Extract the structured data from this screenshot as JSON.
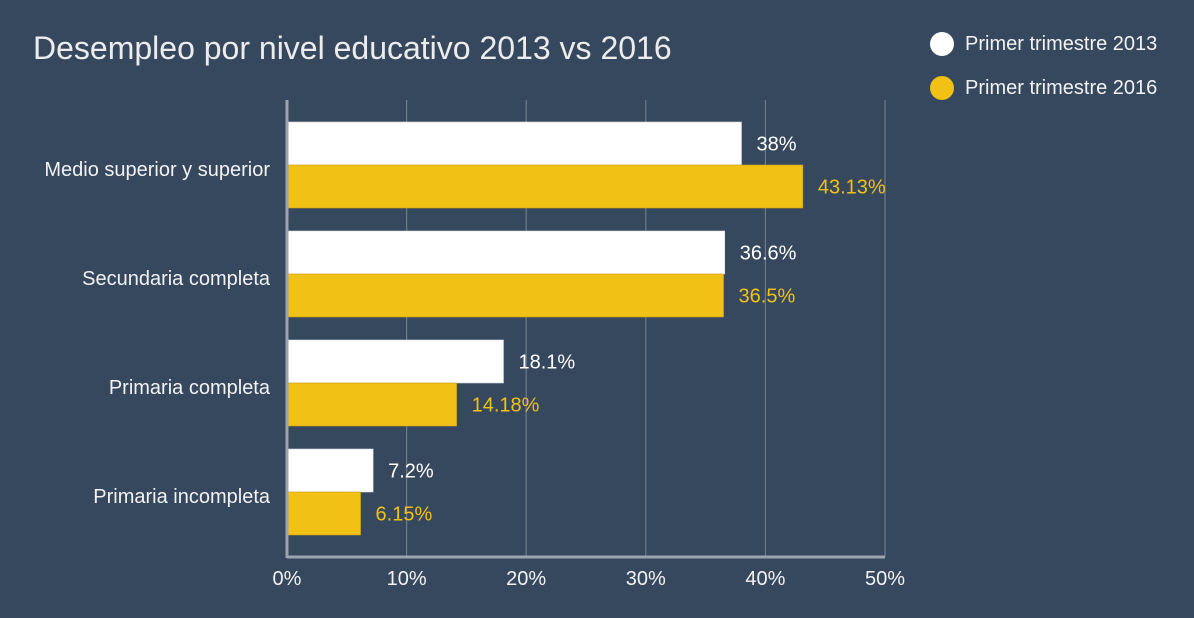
{
  "chart_data": {
    "type": "bar",
    "orientation": "horizontal",
    "title": "Desempleo por nivel educativo 2013 vs 2016",
    "categories": [
      "Medio superior y superior",
      "Secundaria completa",
      "Primaria completa",
      "Primaria incompleta"
    ],
    "series": [
      {
        "name": "Primer trimestre 2013",
        "color": "#ffffff",
        "values": [
          38,
          36.6,
          18.1,
          7.2
        ],
        "labels": [
          "38%",
          "36.6%",
          "18.1%",
          "7.2%"
        ]
      },
      {
        "name": "Primer trimestre 2016",
        "color": "#f1c116",
        "values": [
          43.13,
          36.5,
          14.18,
          6.15
        ],
        "labels": [
          "43.13%",
          "36.5%",
          "14.18%",
          "6.15%"
        ]
      }
    ],
    "xlim": [
      0,
      50
    ],
    "xticks": [
      0,
      10,
      20,
      30,
      40,
      50
    ],
    "xtick_labels": [
      "0%",
      "10%",
      "20%",
      "30%",
      "40%",
      "50%"
    ],
    "grid": true,
    "legend_position": "top-right",
    "xlabel": "",
    "ylabel": ""
  }
}
